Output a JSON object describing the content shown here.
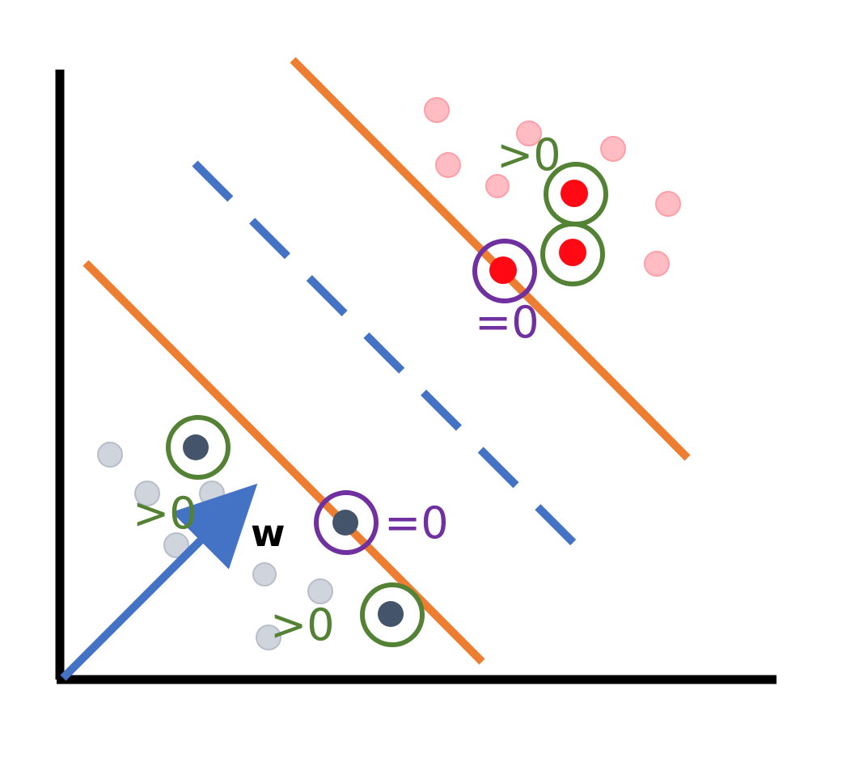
{
  "colors": {
    "axis": "#000000",
    "margin_line": "#ED7D31",
    "decision_boundary": "#4472C4",
    "weight_vector": "#4472C4",
    "positive_point": "#FF0A14",
    "positive_point_faded": "#FFBCC2",
    "negative_point": "#44546A",
    "negative_point_faded": "#D0D4DC",
    "slack_positive_ring": "#548235",
    "on_margin_ring": "#7030A0"
  },
  "labels": {
    "weight_vector": "w",
    "greater_zero_top": ">0",
    "equals_zero_top": "=0",
    "greater_zero_left": ">0",
    "equals_zero_bottom": "=0",
    "greater_zero_bottom": ">0"
  }
}
